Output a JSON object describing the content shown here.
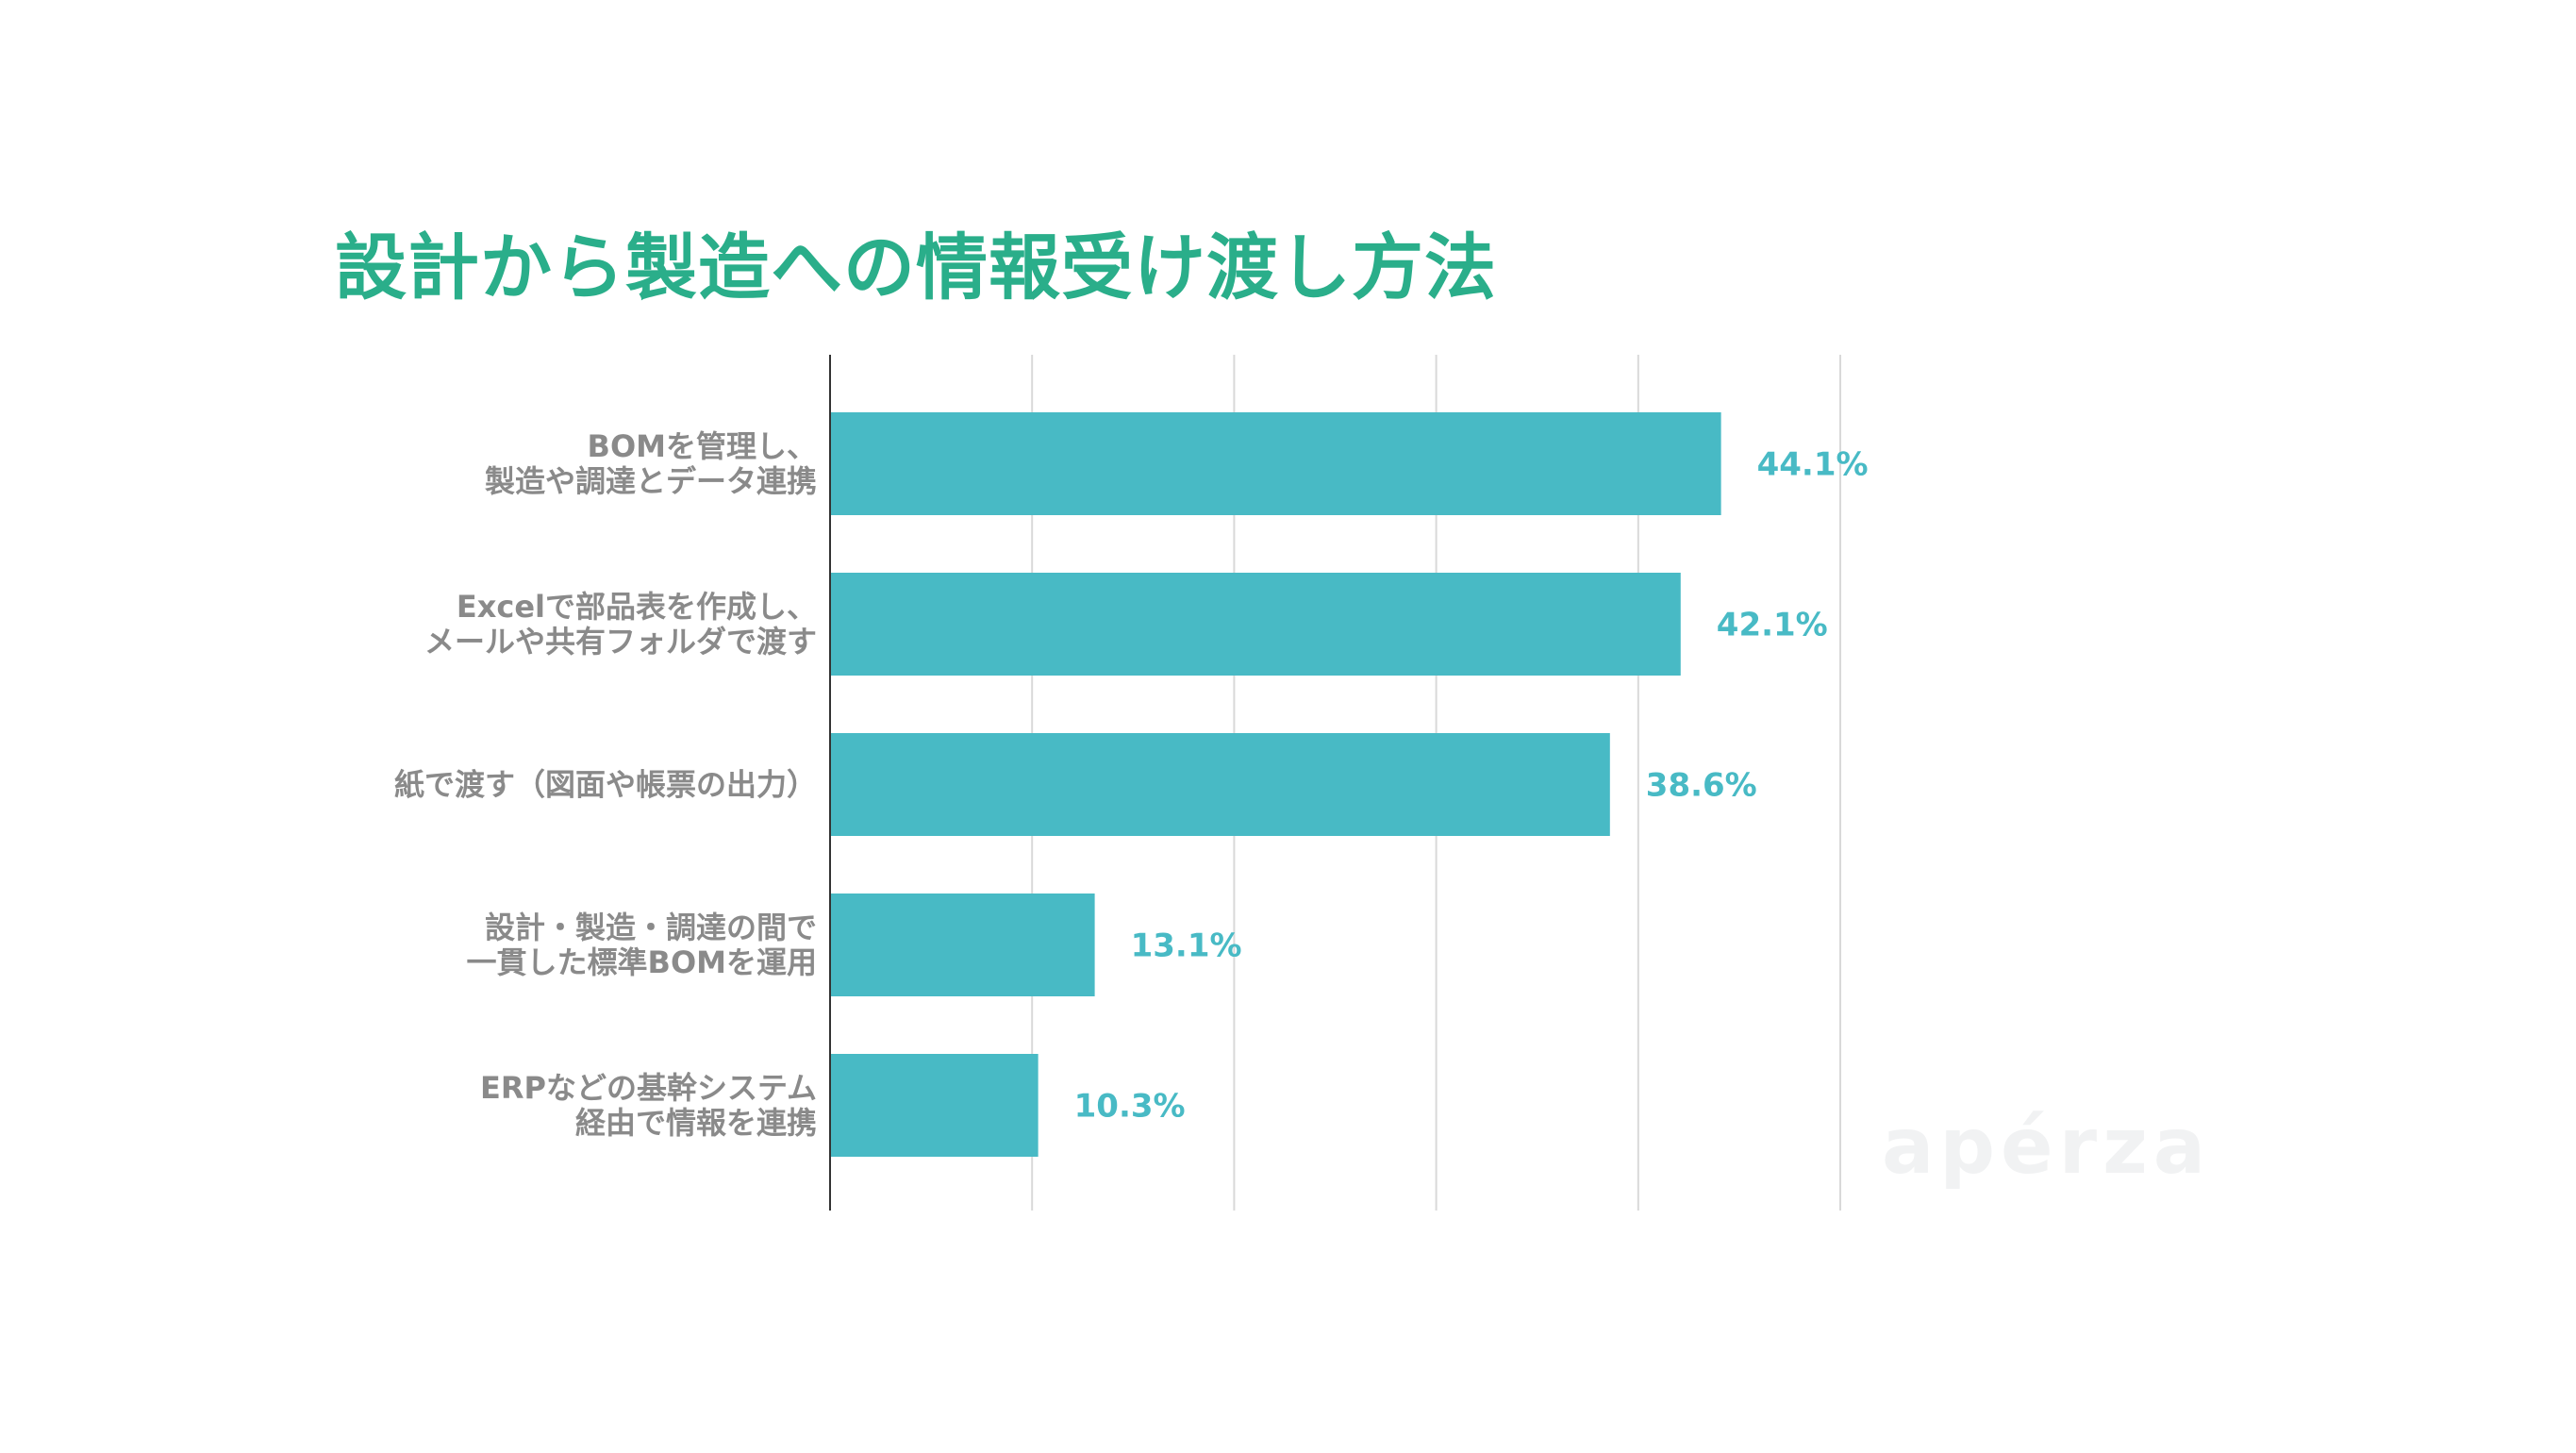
{
  "title": "設計から製造への情報受け渡し方法",
  "watermark": "apérza",
  "colors": {
    "title": "#2aae8a",
    "bar": "#48bac5",
    "value_label": "#48bac5",
    "category_label": "#8a8a8a",
    "grid": "#d9d9d9",
    "axis": "#333333",
    "watermark": "#f1f2f3"
  },
  "chart_data": {
    "type": "bar",
    "orientation": "horizontal",
    "categories": [
      [
        "BOMを管理し、",
        "製造や調達とデータ連携"
      ],
      [
        "Excelで部品表を作成し、",
        "メールや共有フォルダで渡す"
      ],
      [
        "紙で渡す（図面や帳票の出力）"
      ],
      [
        "設計・製造・調達の間で",
        "一貫した標準BOMを運用"
      ],
      [
        "ERPなどの基幹システム",
        "経由で情報を連携"
      ]
    ],
    "values": [
      44.1,
      42.1,
      38.6,
      13.1,
      10.3
    ],
    "value_labels": [
      "44.1%",
      "42.1%",
      "38.6%",
      "13.1%",
      "10.3%"
    ],
    "xlim": [
      0,
      50
    ],
    "grid_step": 10,
    "grid": true,
    "legend": "none"
  }
}
